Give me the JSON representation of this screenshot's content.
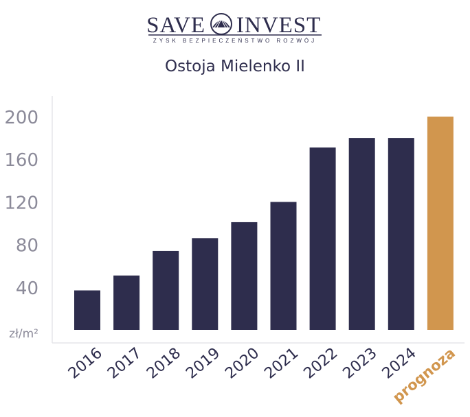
{
  "logo": {
    "word_left": "SAVE",
    "word_right": "INVEST",
    "tagline": "ZYSK BEZPIECZEŃSTWO ROZWÓJ"
  },
  "colors": {
    "bar": "#2e2d4d",
    "forecast_bar": "#d1964e",
    "axis_text": "#8b8a99",
    "axis_line": "#e6e6ea",
    "title": "#2e2d4d"
  },
  "chart_data": {
    "type": "bar",
    "title": "Ostoja Mielenko II",
    "categories": [
      "2016",
      "2017",
      "2018",
      "2019",
      "2020",
      "2021",
      "2022",
      "2023",
      "2024",
      "prognoza"
    ],
    "values": [
      37,
      51,
      74,
      86,
      101,
      120,
      171,
      180,
      180,
      200
    ],
    "highlight_last": true,
    "yticks": [
      200,
      160,
      120,
      80,
      40
    ],
    "ylabel": "zł/m²",
    "ylim": [
      0,
      200
    ],
    "grid": false,
    "legend": "none"
  }
}
